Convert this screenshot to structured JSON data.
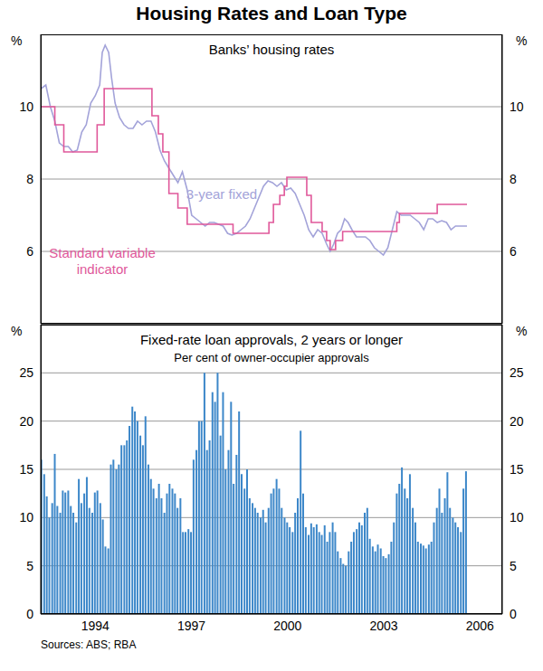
{
  "title": "Housing Rates and Loan Type",
  "source": "Sources: ABS; RBA",
  "chart_data": [
    {
      "type": "line",
      "title": "Banks’ housing rates",
      "ylabel": "%",
      "xlim": [
        1992.3,
        2006.7
      ],
      "xticks": [
        1994,
        1997,
        2000,
        2003,
        2006
      ],
      "ylim": [
        4,
        12
      ],
      "yticks": [
        6,
        8,
        10
      ],
      "grid": true,
      "tick_labels": "y",
      "series": [
        {
          "name": "3-year fixed",
          "color": "#a3a3d9",
          "line_style": "solid",
          "x": [
            1992.31,
            1992.46,
            1992.6,
            1992.74,
            1992.88,
            1993.02,
            1993.16,
            1993.3,
            1993.44,
            1993.58,
            1993.72,
            1993.86,
            1994.0,
            1994.14,
            1994.22,
            1994.31,
            1994.42,
            1994.51,
            1994.62,
            1994.76,
            1994.9,
            1995.04,
            1995.18,
            1995.32,
            1995.46,
            1995.6,
            1995.74,
            1995.88,
            1996.02,
            1996.16,
            1996.3,
            1996.44,
            1996.58,
            1996.72,
            1996.87,
            1997.01,
            1997.15,
            1997.29,
            1997.43,
            1997.57,
            1997.71,
            1997.85,
            1997.99,
            1998.13,
            1998.27,
            1998.41,
            1998.55,
            1998.69,
            1998.83,
            1998.97,
            1999.11,
            1999.25,
            1999.39,
            1999.53,
            1999.67,
            1999.81,
            1999.96,
            2000.1,
            2000.24,
            2000.38,
            2000.52,
            2000.66,
            2000.8,
            2000.94,
            2001.08,
            2001.22,
            2001.33,
            2001.44,
            2001.56,
            2001.67,
            2001.78,
            2001.89,
            2002.01,
            2002.15,
            2002.29,
            2002.43,
            2002.57,
            2002.71,
            2002.85,
            2002.99,
            2003.13,
            2003.27,
            2003.41,
            2003.55,
            2003.69,
            2003.83,
            2003.97,
            2004.11,
            2004.25,
            2004.39,
            2004.53,
            2004.67,
            2004.81,
            2004.96,
            2005.1,
            2005.24,
            2005.38,
            2005.6
          ],
          "values": [
            10.5,
            10.6,
            10.0,
            9.6,
            9.0,
            8.9,
            8.9,
            8.75,
            8.8,
            9.3,
            9.5,
            10.1,
            10.3,
            10.6,
            11.5,
            11.7,
            11.5,
            10.8,
            10.1,
            9.7,
            9.5,
            9.4,
            9.4,
            9.6,
            9.5,
            9.6,
            9.6,
            9.3,
            8.8,
            8.5,
            8.3,
            8.1,
            7.9,
            8.2,
            7.7,
            7.0,
            6.9,
            6.8,
            6.7,
            6.8,
            6.8,
            6.75,
            6.7,
            6.5,
            6.45,
            6.5,
            6.6,
            6.7,
            6.9,
            7.2,
            7.5,
            7.8,
            7.95,
            7.9,
            7.8,
            7.9,
            7.7,
            7.75,
            7.6,
            7.3,
            7.0,
            6.6,
            6.4,
            6.6,
            6.5,
            6.2,
            6.0,
            6.2,
            6.5,
            6.6,
            6.9,
            6.8,
            6.6,
            6.4,
            6.4,
            6.4,
            6.3,
            6.1,
            6.0,
            5.9,
            6.1,
            6.6,
            7.1,
            7.0,
            7.0,
            7.0,
            6.9,
            6.8,
            6.6,
            6.9,
            6.9,
            6.8,
            6.85,
            6.8,
            6.6,
            6.7,
            6.7,
            6.7
          ]
        },
        {
          "name": "Standard variable indicator",
          "color": "#e0589a",
          "line_style": "step",
          "x": [
            1992.31,
            1992.74,
            1993.02,
            1994.06,
            1994.28,
            1995.77,
            1995.97,
            1996.11,
            1996.3,
            1996.58,
            1996.87,
            1998.3,
            1999.42,
            1999.56,
            1999.76,
            1999.9,
            1999.98,
            2000.6,
            2000.74,
            2001.08,
            2001.22,
            2001.33,
            2001.5,
            2001.72,
            2003.41,
            2003.49,
            2004.67,
            2005.6
          ],
          "values": [
            10.0,
            9.5,
            8.75,
            9.5,
            10.5,
            9.75,
            9.25,
            8.75,
            7.6,
            7.2,
            6.75,
            6.5,
            6.8,
            7.3,
            7.55,
            7.8,
            8.05,
            7.55,
            6.8,
            6.55,
            6.3,
            6.05,
            6.3,
            6.55,
            6.8,
            7.05,
            7.3,
            7.3
          ]
        }
      ]
    },
    {
      "type": "bar",
      "title": "Fixed-rate loan approvals, 2 years or longer",
      "subtitle": "Per cent of owner-occupier approvals",
      "ylabel": "%",
      "color": "#3c87c9",
      "xlim": [
        1992.3,
        2006.7
      ],
      "xticks": [
        1994,
        1997,
        2000,
        2003,
        2006
      ],
      "ylim": [
        0,
        30
      ],
      "yticks": [
        0,
        5,
        10,
        15,
        20,
        25
      ],
      "grid": true,
      "x": [
        1992.33,
        1992.42,
        1992.5,
        1992.58,
        1992.67,
        1992.75,
        1992.83,
        1992.92,
        1993.0,
        1993.08,
        1993.17,
        1993.25,
        1993.33,
        1993.42,
        1993.5,
        1993.58,
        1993.67,
        1993.75,
        1993.83,
        1993.92,
        1994.0,
        1994.08,
        1994.17,
        1994.25,
        1994.33,
        1994.42,
        1994.5,
        1994.58,
        1994.67,
        1994.75,
        1994.83,
        1994.92,
        1995.0,
        1995.08,
        1995.17,
        1995.25,
        1995.33,
        1995.42,
        1995.5,
        1995.58,
        1995.67,
        1995.75,
        1995.83,
        1995.92,
        1996.0,
        1996.08,
        1996.17,
        1996.25,
        1996.33,
        1996.42,
        1996.5,
        1996.58,
        1996.67,
        1996.75,
        1996.83,
        1996.92,
        1997.0,
        1997.08,
        1997.17,
        1997.25,
        1997.33,
        1997.42,
        1997.5,
        1997.58,
        1997.67,
        1997.75,
        1997.83,
        1997.92,
        1998.0,
        1998.08,
        1998.17,
        1998.25,
        1998.33,
        1998.42,
        1998.5,
        1998.58,
        1998.67,
        1998.75,
        1998.83,
        1998.92,
        1999.0,
        1999.08,
        1999.17,
        1999.25,
        1999.33,
        1999.42,
        1999.5,
        1999.58,
        1999.67,
        1999.75,
        1999.83,
        1999.92,
        2000.0,
        2000.08,
        2000.17,
        2000.25,
        2000.33,
        2000.42,
        2000.5,
        2000.58,
        2000.67,
        2000.75,
        2000.83,
        2000.92,
        2001.0,
        2001.08,
        2001.17,
        2001.25,
        2001.33,
        2001.42,
        2001.5,
        2001.58,
        2001.67,
        2001.75,
        2001.83,
        2001.92,
        2002.0,
        2002.08,
        2002.17,
        2002.25,
        2002.33,
        2002.42,
        2002.5,
        2002.58,
        2002.67,
        2002.75,
        2002.83,
        2002.92,
        2003.0,
        2003.08,
        2003.17,
        2003.25,
        2003.33,
        2003.42,
        2003.5,
        2003.58,
        2003.67,
        2003.75,
        2003.83,
        2003.92,
        2004.0,
        2004.08,
        2004.17,
        2004.25,
        2004.33,
        2004.42,
        2004.5,
        2004.58,
        2004.67,
        2004.75,
        2004.83,
        2004.92,
        2005.0,
        2005.08,
        2005.17,
        2005.25,
        2005.33,
        2005.42,
        2005.5,
        2005.58
      ],
      "values": [
        16,
        14.5,
        12.2,
        10,
        11.5,
        16.6,
        11.2,
        10.5,
        12.8,
        12.6,
        12.8,
        11.2,
        10.5,
        9.5,
        14.0,
        11.5,
        12.5,
        14.2,
        11,
        10.5,
        12.6,
        12.8,
        11.5,
        9.8,
        7.0,
        6.8,
        15.5,
        16,
        15,
        15.5,
        17.5,
        17.5,
        18,
        19.5,
        21.5,
        21,
        20,
        18.5,
        17.5,
        20.5,
        15.5,
        14,
        13,
        12,
        13.5,
        12,
        10.5,
        12.5,
        13.5,
        13,
        12.5,
        11,
        12,
        8.5,
        8.5,
        8.8,
        8.5,
        16,
        17,
        20,
        20,
        25,
        17,
        18,
        23,
        22,
        25,
        18.5,
        23,
        15,
        17,
        22,
        13.5,
        16.5,
        21,
        14.5,
        13,
        15,
        12,
        11.5,
        11,
        10.5,
        10,
        10.8,
        9.5,
        11,
        12.5,
        13,
        14,
        13,
        11,
        10,
        9.5,
        9,
        8.5,
        10.5,
        12,
        19,
        12.5,
        9,
        8.2,
        9.4,
        9.0,
        9.3,
        8.5,
        8.2,
        9.2,
        7.5,
        8.5,
        9.5,
        8.5,
        6.5,
        5.8,
        5.2,
        5.0,
        6.5,
        7.5,
        8.5,
        8.8,
        9.5,
        9.2,
        10.5,
        11,
        7.8,
        7,
        6.5,
        7.2,
        6.8,
        6,
        5.8,
        6.2,
        7.5,
        9.5,
        12.5,
        13.5,
        15.2,
        13,
        12,
        14.5,
        11,
        9.5,
        7.5,
        7.3,
        7.1,
        6.8,
        7.2,
        7.5,
        9.5,
        11,
        13,
        10.5,
        12,
        14.7,
        11,
        10,
        9.5,
        9,
        8.5,
        13,
        14.8
      ]
    }
  ]
}
